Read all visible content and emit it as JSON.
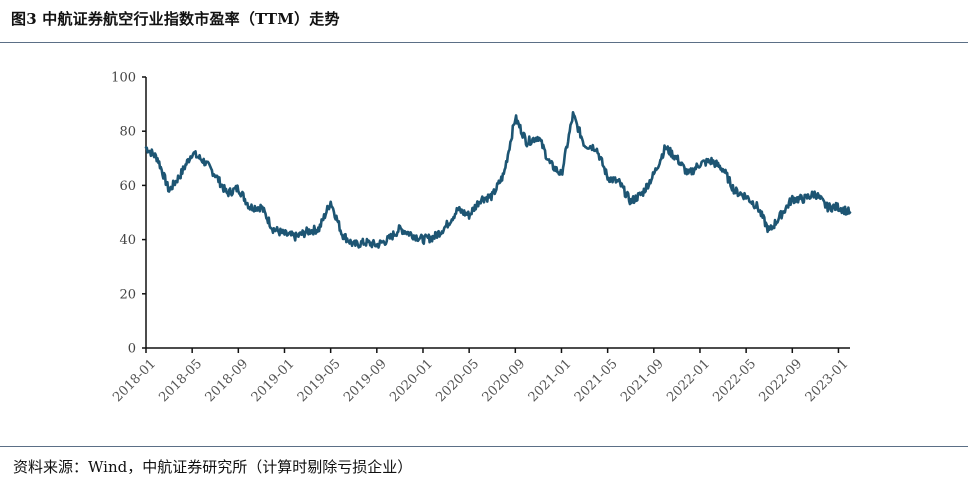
{
  "header": {
    "title": "图3 中航证券航空行业指数市盈率（TTM）走势"
  },
  "footer": {
    "source": "资料来源：Wind，中航证券研究所（计算时剔除亏损企业）"
  },
  "chart_data": {
    "type": "line",
    "title": "图3 中航证券航空行业指数市盈率（TTM）走势",
    "xlabel": "",
    "ylabel": "",
    "ylim": [
      0,
      100
    ],
    "yticks": [
      "0",
      "20",
      "40",
      "60",
      "80",
      "100"
    ],
    "xticks": [
      "2018-01",
      "2018-05",
      "2018-09",
      "2019-01",
      "2019-05",
      "2019-09",
      "2020-01",
      "2020-05",
      "2020-09",
      "2021-01",
      "2021-05",
      "2021-09",
      "2022-01",
      "2022-05",
      "2022-09",
      "2023-01"
    ],
    "grid": false,
    "legend": "none",
    "line_color": "#1d5573",
    "series": [
      {
        "x": [
          "2018-01",
          "2018-02",
          "2018-03",
          "2018-04",
          "2018-05",
          "2018-06",
          "2018-07",
          "2018-08",
          "2018-09",
          "2018-10",
          "2018-11",
          "2018-12",
          "2019-01",
          "2019-02",
          "2019-03",
          "2019-04",
          "2019-05",
          "2019-06",
          "2019-07",
          "2019-08",
          "2019-09",
          "2019-10",
          "2019-11",
          "2019-12",
          "2020-01",
          "2020-02",
          "2020-03",
          "2020-04",
          "2020-05",
          "2020-06",
          "2020-07",
          "2020-08",
          "2020-09",
          "2020-10",
          "2020-11",
          "2020-12",
          "2021-01",
          "2021-02",
          "2021-03",
          "2021-04",
          "2021-05",
          "2021-06",
          "2021-07",
          "2021-08",
          "2021-09",
          "2021-10",
          "2021-11",
          "2021-12",
          "2022-01",
          "2022-02",
          "2022-03",
          "2022-04",
          "2022-05",
          "2022-06",
          "2022-07",
          "2022-08",
          "2022-09",
          "2022-10",
          "2022-11",
          "2022-12",
          "2023-01",
          "2023-02"
        ],
        "values": [
          74,
          70,
          58,
          64,
          72,
          69,
          64,
          57,
          59,
          52,
          52,
          44,
          42,
          41,
          43,
          44,
          54,
          42,
          38,
          39,
          38,
          40,
          44,
          42,
          40,
          41,
          45,
          51,
          49,
          55,
          56,
          64,
          85,
          76,
          78,
          68,
          64,
          86,
          75,
          74,
          63,
          61,
          54,
          57,
          64,
          74,
          70,
          64,
          68,
          69,
          66,
          58,
          56,
          52,
          43,
          49,
          55,
          55,
          57,
          52,
          52,
          50
        ]
      }
    ]
  }
}
